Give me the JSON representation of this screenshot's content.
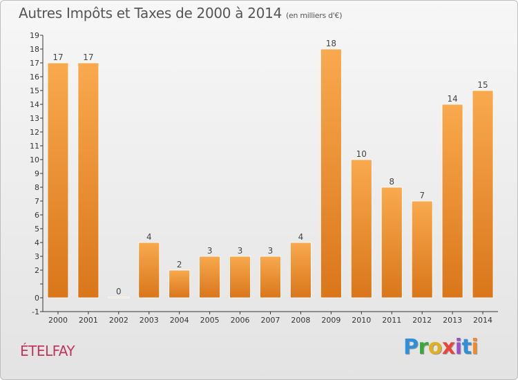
{
  "header": {
    "title": "Autres Impôts et Taxes de 2000 à 2014",
    "unit": "(en milliers d'€)"
  },
  "commune": "ÉTELFAY",
  "logo": [
    "P",
    "r",
    "o",
    "x",
    "i",
    "t",
    "i"
  ],
  "colors": {
    "bar_light": "#f9a94e",
    "bar_dark": "#d9761a",
    "commune": "#c2365e"
  },
  "chart_data": {
    "type": "bar",
    "categories": [
      "2000",
      "2001",
      "2002",
      "2003",
      "2004",
      "2005",
      "2006",
      "2007",
      "2008",
      "2009",
      "2010",
      "2011",
      "2012",
      "2013",
      "2014"
    ],
    "values": [
      17,
      17,
      0,
      4,
      2,
      3,
      3,
      3,
      4,
      18,
      10,
      8,
      7,
      14,
      15
    ],
    "ylim": [
      -1,
      19
    ],
    "yticks": [
      "-1",
      "0",
      "",
      "2",
      "3",
      "4",
      "5",
      "6",
      "7",
      "8",
      "9",
      "10",
      "11",
      "12",
      "13",
      "14",
      "15",
      "16",
      "17",
      "18",
      "19"
    ],
    "grid": false,
    "legend": "none"
  }
}
